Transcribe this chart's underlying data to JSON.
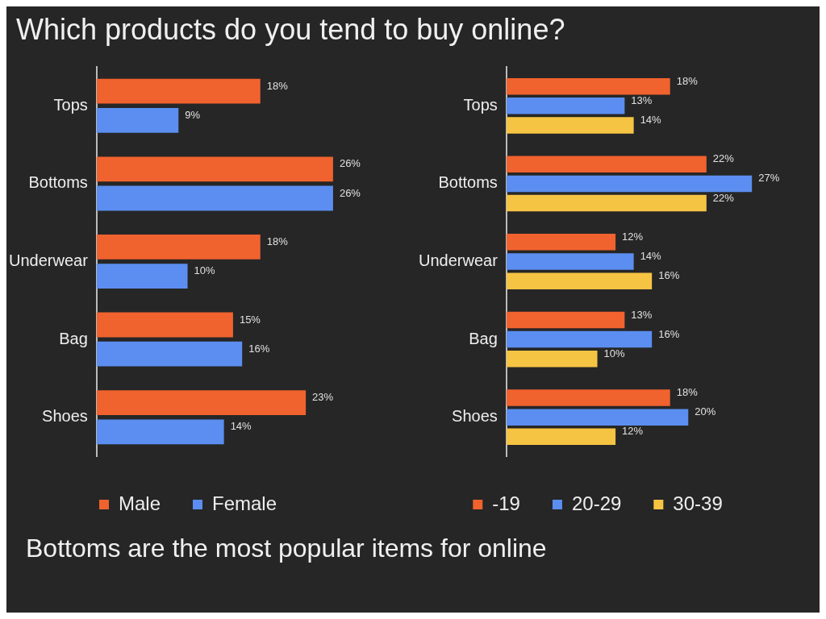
{
  "chart_data": [
    {
      "type": "bar",
      "title": "Which products do you tend to buy online?",
      "annotations": [
        "Bottoms are the most popular items for online"
      ],
      "orientation": "horizontal",
      "legend": "bottom",
      "tick_labels": "y",
      "categories": [
        "Tops",
        "Bottoms",
        "Underwear",
        "Bag",
        "Shoes"
      ],
      "series": [
        {
          "name": "Male",
          "color": "#f0622e",
          "values": [
            18,
            26,
            18,
            15,
            23
          ],
          "value_labels": [
            "18%",
            "26%",
            "18%",
            "15%",
            "23%"
          ]
        },
        {
          "name": "Female",
          "color": "#5b8ef0",
          "values": [
            9,
            26,
            10,
            16,
            14
          ],
          "value_labels": [
            "9%",
            "26%",
            "10%",
            "16%",
            "14%"
          ]
        }
      ]
    },
    {
      "type": "bar",
      "orientation": "horizontal",
      "legend": "bottom",
      "tick_labels": "y",
      "categories": [
        "Tops",
        "Bottoms",
        "Underwear",
        "Bag",
        "Shoes"
      ],
      "series": [
        {
          "name": "-19",
          "color": "#f0622e",
          "values": [
            18,
            22,
            12,
            13,
            18
          ],
          "value_labels": [
            "18%",
            "22%",
            "12%",
            "13%",
            "18%"
          ]
        },
        {
          "name": "20-29",
          "color": "#5b8ef0",
          "values": [
            13,
            27,
            14,
            16,
            20
          ],
          "value_labels": [
            "13%",
            "27%",
            "14%",
            "16%",
            "20%"
          ]
        },
        {
          "name": "30-39",
          "color": "#f5c443",
          "values": [
            14,
            22,
            16,
            10,
            12
          ],
          "value_labels": [
            "14%",
            "22%",
            "16%",
            "10%",
            "12%"
          ]
        }
      ]
    }
  ]
}
